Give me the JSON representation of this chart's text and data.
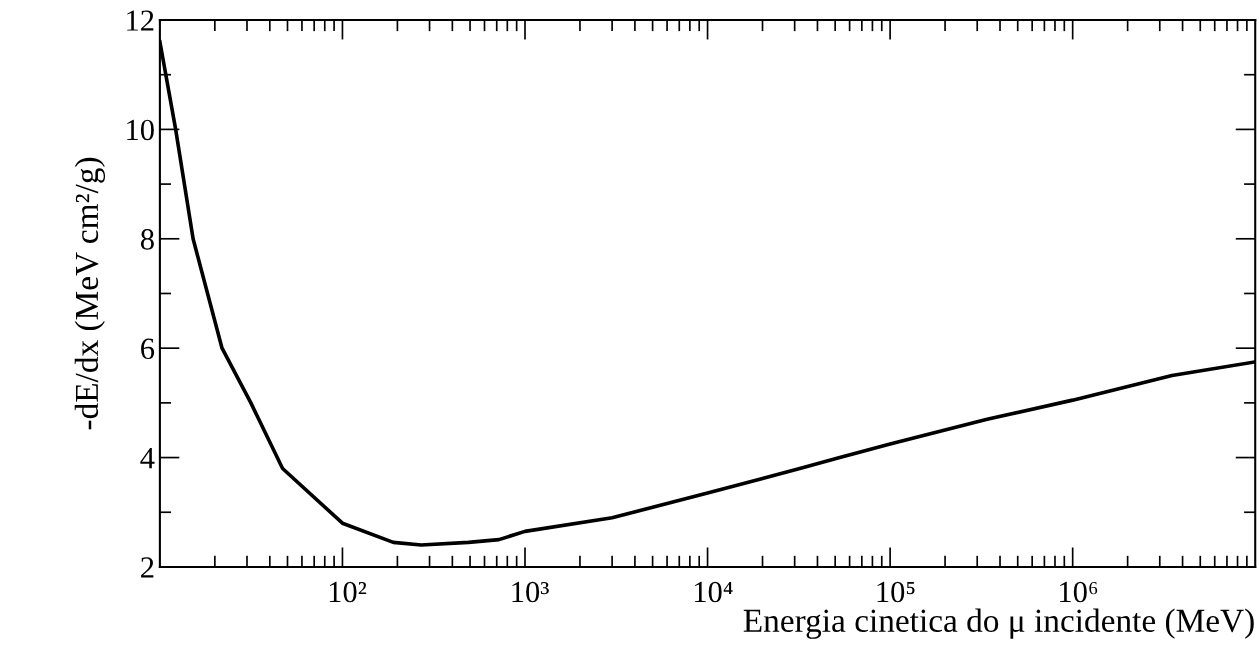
{
  "chart_data": {
    "type": "line",
    "xlabel": "Energia cinetica do μ incidente (MeV)",
    "ylabel": "-dE/dx (MeV cm²/g)",
    "log": "x",
    "grid": false,
    "legend": false,
    "marker": "none",
    "line_style": "solid",
    "xlim": [
      10,
      10000000
    ],
    "ylim": [
      2,
      12
    ],
    "xticks": [
      {
        "value": 100,
        "label": "10²"
      },
      {
        "value": 1000,
        "label": "10³"
      },
      {
        "value": 10000,
        "label": "10⁴"
      },
      {
        "value": 100000,
        "label": "10⁵"
      },
      {
        "value": 1000000,
        "label": "10⁶"
      }
    ],
    "yticks": [
      2,
      4,
      6,
      8,
      10,
      12
    ],
    "x": [
      10,
      12.2,
      15.2,
      21.9,
      31.5,
      47,
      100,
      190,
      270,
      490,
      720,
      1000,
      3000,
      10000,
      32000,
      53000,
      100000,
      340000,
      1000000,
      3500000,
      10000000
    ],
    "series": [
      {
        "color": "#000000",
        "values": [
          11.6,
          10,
          8,
          6,
          5,
          3.8,
          2.8,
          2.45,
          2.4,
          2.45,
          2.5,
          2.65,
          2.9,
          3.35,
          3.8,
          4,
          4.25,
          4.7,
          5.05,
          5.5,
          5.75
        ]
      }
    ]
  }
}
